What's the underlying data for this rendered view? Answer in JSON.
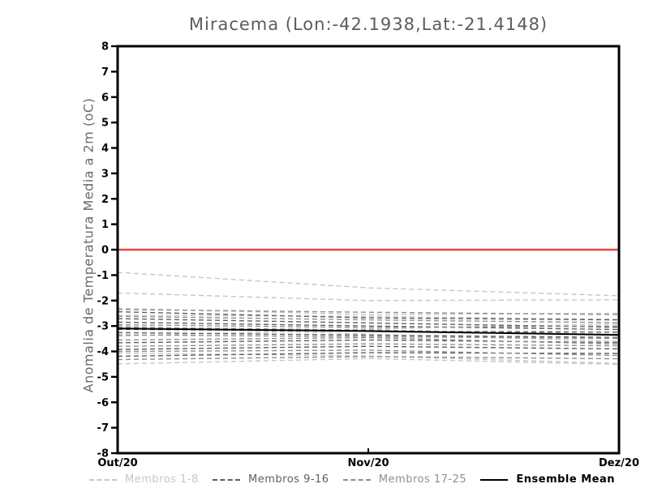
{
  "header": {
    "title": "Miracema (Lon:-42.1938,Lat:-21.4148)"
  },
  "chart_data": {
    "type": "line",
    "title": "Miracema (Lon:-42.1938,Lat:-21.4148)",
    "xlabel": "",
    "ylabel": "Anomalia de Temperatura Media a 2m (oC)",
    "categories": [
      "Out/20",
      "Nov/20",
      "Dez/20"
    ],
    "ylim": [
      -8,
      8
    ],
    "yticks": [
      -8,
      -7,
      -6,
      -5,
      -4,
      -3,
      -2,
      -1,
      0,
      1,
      2,
      3,
      4,
      5,
      6,
      7,
      8
    ],
    "grid": "off",
    "zero_line": {
      "value": 0,
      "color": "#f04343"
    },
    "frame_color": "#000000",
    "series_groups": [
      {
        "name": "Membros 1-8",
        "color": "#c6c6c6",
        "style": "dashed",
        "members": [
          [
            -0.89,
            -1.5,
            -1.81
          ],
          [
            -1.7,
            -2.0,
            -1.97
          ],
          [
            -2.31,
            -2.55,
            -2.5
          ],
          [
            -2.58,
            -2.62,
            -2.74
          ],
          [
            -3.0,
            -3.32,
            -3.6
          ],
          [
            -3.4,
            -3.12,
            -2.92
          ],
          [
            -4.06,
            -4.18,
            -4.47
          ],
          [
            -4.49,
            -4.28,
            -4.51
          ]
        ]
      },
      {
        "name": "Membros 9-16",
        "color": "#5f5f5f",
        "style": "dashed",
        "members": [
          [
            -2.44,
            -2.68,
            -2.76
          ],
          [
            -2.71,
            -2.88,
            -3.05
          ],
          [
            -2.85,
            -3.0,
            -3.14
          ],
          [
            -3.13,
            -3.2,
            -3.24
          ],
          [
            -3.26,
            -3.36,
            -3.45
          ],
          [
            -3.66,
            -3.55,
            -3.65
          ],
          [
            -3.92,
            -3.8,
            -3.9
          ],
          [
            -4.19,
            -4.05,
            -4.08
          ]
        ]
      },
      {
        "name": "Membros 17-25",
        "color": "#8f8f8f",
        "style": "dashed",
        "members": [
          [
            -2.35,
            -2.46,
            -2.55
          ],
          [
            -2.62,
            -2.76,
            -2.87
          ],
          [
            -2.95,
            -3.06,
            -3.0
          ],
          [
            -3.05,
            -3.16,
            -3.33
          ],
          [
            -3.35,
            -3.42,
            -3.49
          ],
          [
            -3.55,
            -3.46,
            -3.71
          ],
          [
            -3.8,
            -3.7,
            -3.78
          ],
          [
            -4.0,
            -3.95,
            -4.16
          ],
          [
            -4.32,
            -4.2,
            -4.29
          ]
        ]
      }
    ],
    "mean_series": {
      "name": "Ensemble Mean",
      "color": "#000000",
      "style": "solid",
      "values": [
        -3.1,
        -3.2,
        -3.35
      ]
    }
  },
  "legend": {
    "items": [
      {
        "label": "Membros 1-8",
        "color": "#c6c6c6",
        "text_color": "#c6c6c6",
        "style": "dashed"
      },
      {
        "label": "Membros 9-16",
        "color": "#5f5f5f",
        "text_color": "#5f5f5f",
        "style": "dashed"
      },
      {
        "label": "Membros 17-25",
        "color": "#8f8f8f",
        "text_color": "#8f8f8f",
        "style": "dashed"
      },
      {
        "label": "Ensemble Mean",
        "color": "#000000",
        "text_color": "#000000",
        "style": "solid"
      }
    ]
  }
}
